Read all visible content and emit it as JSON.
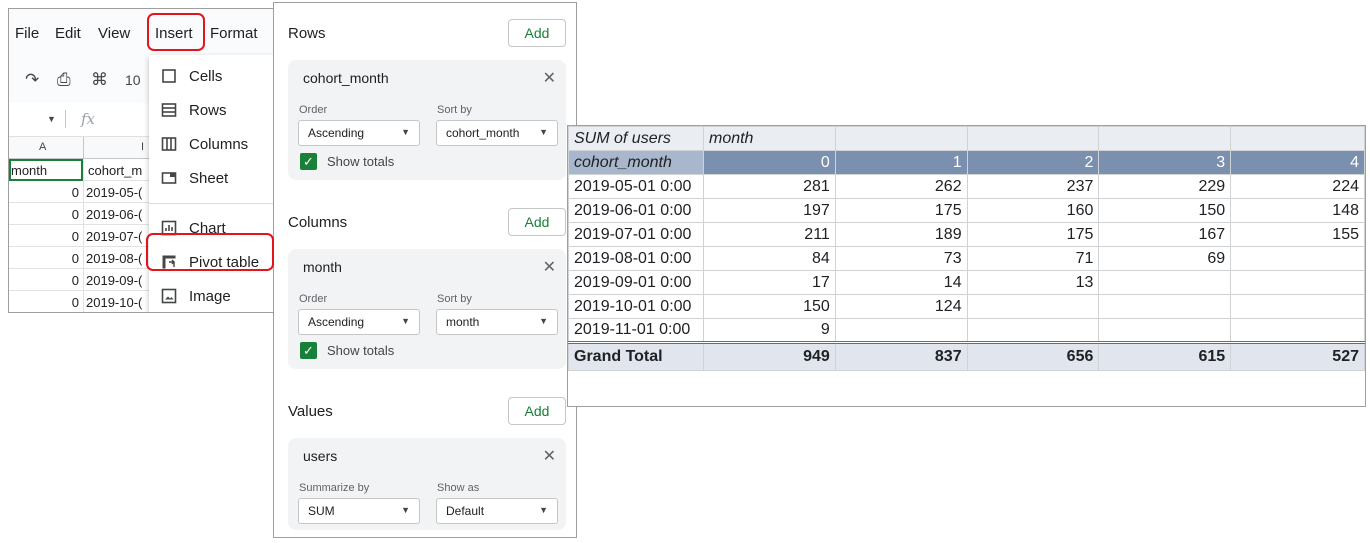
{
  "sheet": {
    "menu": [
      "File",
      "Edit",
      "View",
      "Insert",
      "Format"
    ],
    "toolbar": {
      "zoom_partial": "10"
    },
    "formula": {
      "fx": "fx"
    },
    "columns": [
      "A",
      "I"
    ],
    "header_row": [
      "month",
      "cohort_m"
    ],
    "rows": [
      {
        "a": "0",
        "b": "2019-05-("
      },
      {
        "a": "0",
        "b": "2019-06-("
      },
      {
        "a": "0",
        "b": "2019-07-("
      },
      {
        "a": "0",
        "b": "2019-08-("
      },
      {
        "a": "0",
        "b": "2019-09-("
      },
      {
        "a": "0",
        "b": "2019-10-("
      }
    ],
    "insert_menu": [
      {
        "label": "Cells",
        "icon": "square-outline-icon"
      },
      {
        "label": "Rows",
        "icon": "rows-icon"
      },
      {
        "label": "Columns",
        "icon": "columns-icon"
      },
      {
        "label": "Sheet",
        "icon": "sheet-icon"
      },
      {
        "label": "Chart",
        "icon": "chart-icon"
      },
      {
        "label": "Pivot table",
        "icon": "pivot-table-icon"
      },
      {
        "label": "Image",
        "icon": "image-icon"
      }
    ]
  },
  "editor": {
    "rows_title": "Rows",
    "columns_title": "Columns",
    "values_title": "Values",
    "add_label": "Add",
    "rows_card": {
      "field": "cohort_month",
      "order_label": "Order",
      "order_value": "Ascending",
      "sort_label": "Sort by",
      "sort_value": "cohort_month",
      "show_totals": "Show totals"
    },
    "columns_card": {
      "field": "month",
      "order_label": "Order",
      "order_value": "Ascending",
      "sort_label": "Sort by",
      "sort_value": "month",
      "show_totals": "Show totals"
    },
    "values_card": {
      "field": "users",
      "summarize_label": "Summarize by",
      "summarize_value": "SUM",
      "showas_label": "Show as",
      "showas_value": "Default"
    }
  },
  "pivot": {
    "corner": "SUM of users",
    "col_field": "month",
    "row_field": "cohort_month",
    "month_headers": [
      "0",
      "1",
      "2",
      "3",
      "4"
    ],
    "rows": [
      {
        "label": "2019-05-01 0:00",
        "values": [
          "281",
          "262",
          "237",
          "229",
          "224"
        ]
      },
      {
        "label": "2019-06-01 0:00",
        "values": [
          "197",
          "175",
          "160",
          "150",
          "148"
        ]
      },
      {
        "label": "2019-07-01 0:00",
        "values": [
          "211",
          "189",
          "175",
          "167",
          "155"
        ]
      },
      {
        "label": "2019-08-01 0:00",
        "values": [
          "84",
          "73",
          "71",
          "69",
          ""
        ]
      },
      {
        "label": "2019-09-01 0:00",
        "values": [
          "17",
          "14",
          "13",
          "",
          ""
        ]
      },
      {
        "label": "2019-10-01 0:00",
        "values": [
          "150",
          "124",
          "",
          "",
          ""
        ]
      },
      {
        "label": "2019-11-01 0:00",
        "values": [
          "9",
          "",
          "",
          "",
          ""
        ]
      }
    ],
    "total_label": "Grand Total",
    "totals": [
      "949",
      "837",
      "656",
      "615",
      "527"
    ]
  }
}
